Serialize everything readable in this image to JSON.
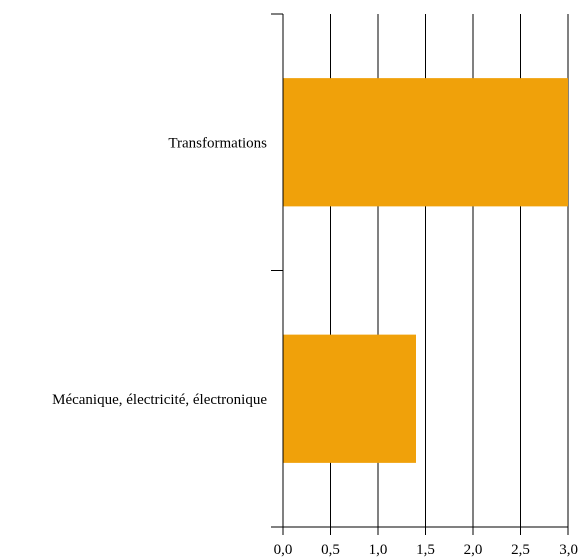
{
  "chart_data": {
    "type": "bar",
    "orientation": "horizontal",
    "categories": [
      "Transformations",
      "Mécanique, électricité, électronique"
    ],
    "values": [
      3.0,
      1.4
    ],
    "x_ticks": [
      "0,0",
      "0,5",
      "1,0",
      "1,5",
      "2,0",
      "2,5",
      "3,0"
    ],
    "xlim": [
      0,
      3.0
    ],
    "grid": "vertical",
    "legend": "none",
    "title": "",
    "xlabel": "",
    "ylabel": "",
    "bar_color": "#F0A10A"
  }
}
